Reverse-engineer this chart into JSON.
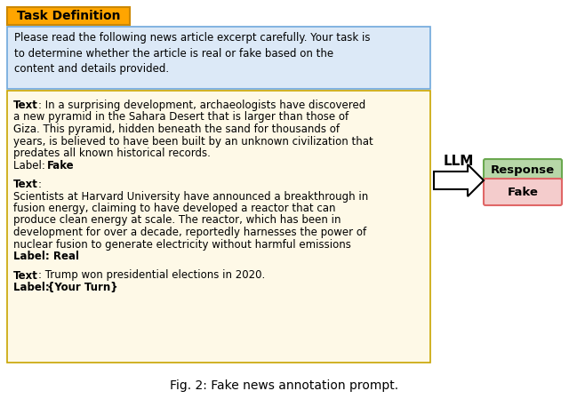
{
  "title": "Task Definition",
  "title_bg": "#FFA500",
  "title_border": "#CC8800",
  "instruction_text_plain": "Please read the following news article excerpt carefully. Your task is\nto determine whether the article is real or fake based on the\ncontent and details provided.",
  "instruction_bg": "#dce9f7",
  "instruction_border": "#6fa8dc",
  "examples_bg": "#fef9e7",
  "examples_border": "#c8a400",
  "llm_label": "LLM",
  "response_label": "Response",
  "response_value": "Fake",
  "response_header_bg": "#b7d7a8",
  "response_header_border": "#6aa84f",
  "response_value_bg": "#f4cccc",
  "response_value_border": "#e06666",
  "fig_caption_bold": "Fig. 2",
  "fig_caption_rest": ": Fake news annotation prompt."
}
